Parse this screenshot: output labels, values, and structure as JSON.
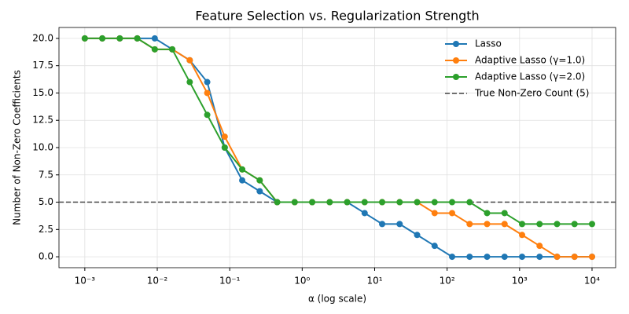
{
  "chart_data": {
    "type": "line",
    "title": "Feature Selection vs. Regularization Strength",
    "x_label": "α (log scale)",
    "y_label": "Number of Non-Zero Coefficients",
    "x": [
      0.001,
      0.001743,
      0.003039,
      0.005298,
      0.009237,
      0.0161,
      0.02807,
      0.04894,
      0.08532,
      0.1487,
      0.2593,
      0.452,
      0.788,
      1.374,
      2.395,
      4.175,
      7.279,
      12.69,
      22.12,
      38.57,
      67.25,
      117.2,
      204.4,
      356.2,
      621.0,
      1083,
      1888,
      3290,
      5736,
      10000
    ],
    "series": [
      {
        "name": "Lasso",
        "color": "#1f77b4",
        "values": [
          20,
          20,
          20,
          20,
          20,
          19,
          18,
          16,
          10,
          7,
          6,
          5,
          5,
          5,
          5,
          5,
          4,
          3,
          3,
          2,
          1,
          0,
          0,
          0,
          0,
          0,
          0,
          0,
          0,
          0
        ]
      },
      {
        "name": "Adaptive Lasso (γ=1.0)",
        "color": "#ff7f0e",
        "values": [
          20,
          20,
          20,
          20,
          19,
          19,
          18,
          15,
          11,
          8,
          7,
          5,
          5,
          5,
          5,
          5,
          5,
          5,
          5,
          5,
          4,
          4,
          3,
          3,
          3,
          2,
          1,
          0,
          0,
          0
        ]
      },
      {
        "name": "Adaptive Lasso (γ=2.0)",
        "color": "#2ca02c",
        "values": [
          20,
          20,
          20,
          20,
          19,
          19,
          16,
          13,
          10,
          8,
          7,
          5,
          5,
          5,
          5,
          5,
          5,
          5,
          5,
          5,
          5,
          5,
          5,
          4,
          4,
          3,
          3,
          3,
          3,
          3
        ]
      }
    ],
    "reference_line": {
      "value": 5,
      "name": "True Non-Zero Count (5)",
      "color": "#444444"
    },
    "x_log": true,
    "xlim": [
      0.00044,
      21170
    ],
    "ylim": [
      -1.0,
      21.0
    ],
    "xticks": [
      {
        "value": 0.001,
        "label": "10⁻³"
      },
      {
        "value": 0.01,
        "label": "10⁻²"
      },
      {
        "value": 0.1,
        "label": "10⁻¹"
      },
      {
        "value": 1,
        "label": "10⁰"
      },
      {
        "value": 10,
        "label": "10¹"
      },
      {
        "value": 100,
        "label": "10²"
      },
      {
        "value": 1000,
        "label": "10³"
      },
      {
        "value": 10000,
        "label": "10⁴"
      }
    ],
    "yticks": [
      {
        "value": 0,
        "label": "0.0"
      },
      {
        "value": 2.5,
        "label": "2.5"
      },
      {
        "value": 5,
        "label": "5.0"
      },
      {
        "value": 7.5,
        "label": "7.5"
      },
      {
        "value": 10,
        "label": "10.0"
      },
      {
        "value": 12.5,
        "label": "12.5"
      },
      {
        "value": 15,
        "label": "15.0"
      },
      {
        "value": 17.5,
        "label": "17.5"
      },
      {
        "value": 20,
        "label": "20.0"
      }
    ],
    "grid": true,
    "legend": "upper right"
  }
}
